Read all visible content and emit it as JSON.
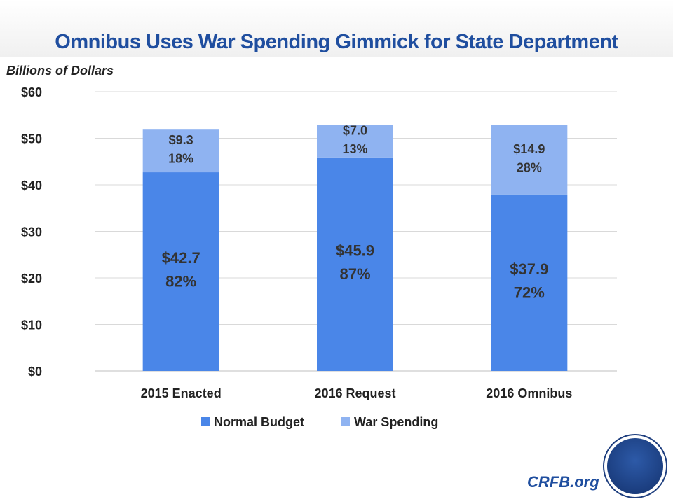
{
  "title": "Omnibus Uses War Spending Gimmick for State Department",
  "footer": {
    "site": "CRFB.org"
  },
  "chart_data": {
    "type": "bar",
    "stacked": true,
    "title": "Omnibus Uses War Spending Gimmick for State Department",
    "ylabel": "Billions of Dollars",
    "xlabel": "",
    "ylim": [
      0,
      60
    ],
    "yticks": [
      0,
      10,
      20,
      30,
      40,
      50,
      60
    ],
    "ytick_labels": [
      "$0",
      "$10",
      "$20",
      "$30",
      "$40",
      "$50",
      "$60"
    ],
    "grid": true,
    "legend": "bottom",
    "categories": [
      "2015 Enacted",
      "2016 Request",
      "2016 Omnibus"
    ],
    "series": [
      {
        "name": "Normal Budget",
        "color": "#4a86e8",
        "values": [
          42.7,
          45.9,
          37.9
        ],
        "labels": [
          "$42.7",
          "$45.9",
          "$37.9"
        ],
        "pct_labels": [
          "82%",
          "87%",
          "72%"
        ]
      },
      {
        "name": "War Spending",
        "color": "#8fb3f1",
        "values": [
          9.3,
          7.0,
          14.9
        ],
        "labels": [
          "$9.3",
          "$7.0",
          "$14.9"
        ],
        "pct_labels": [
          "18%",
          "13%",
          "28%"
        ]
      }
    ]
  }
}
